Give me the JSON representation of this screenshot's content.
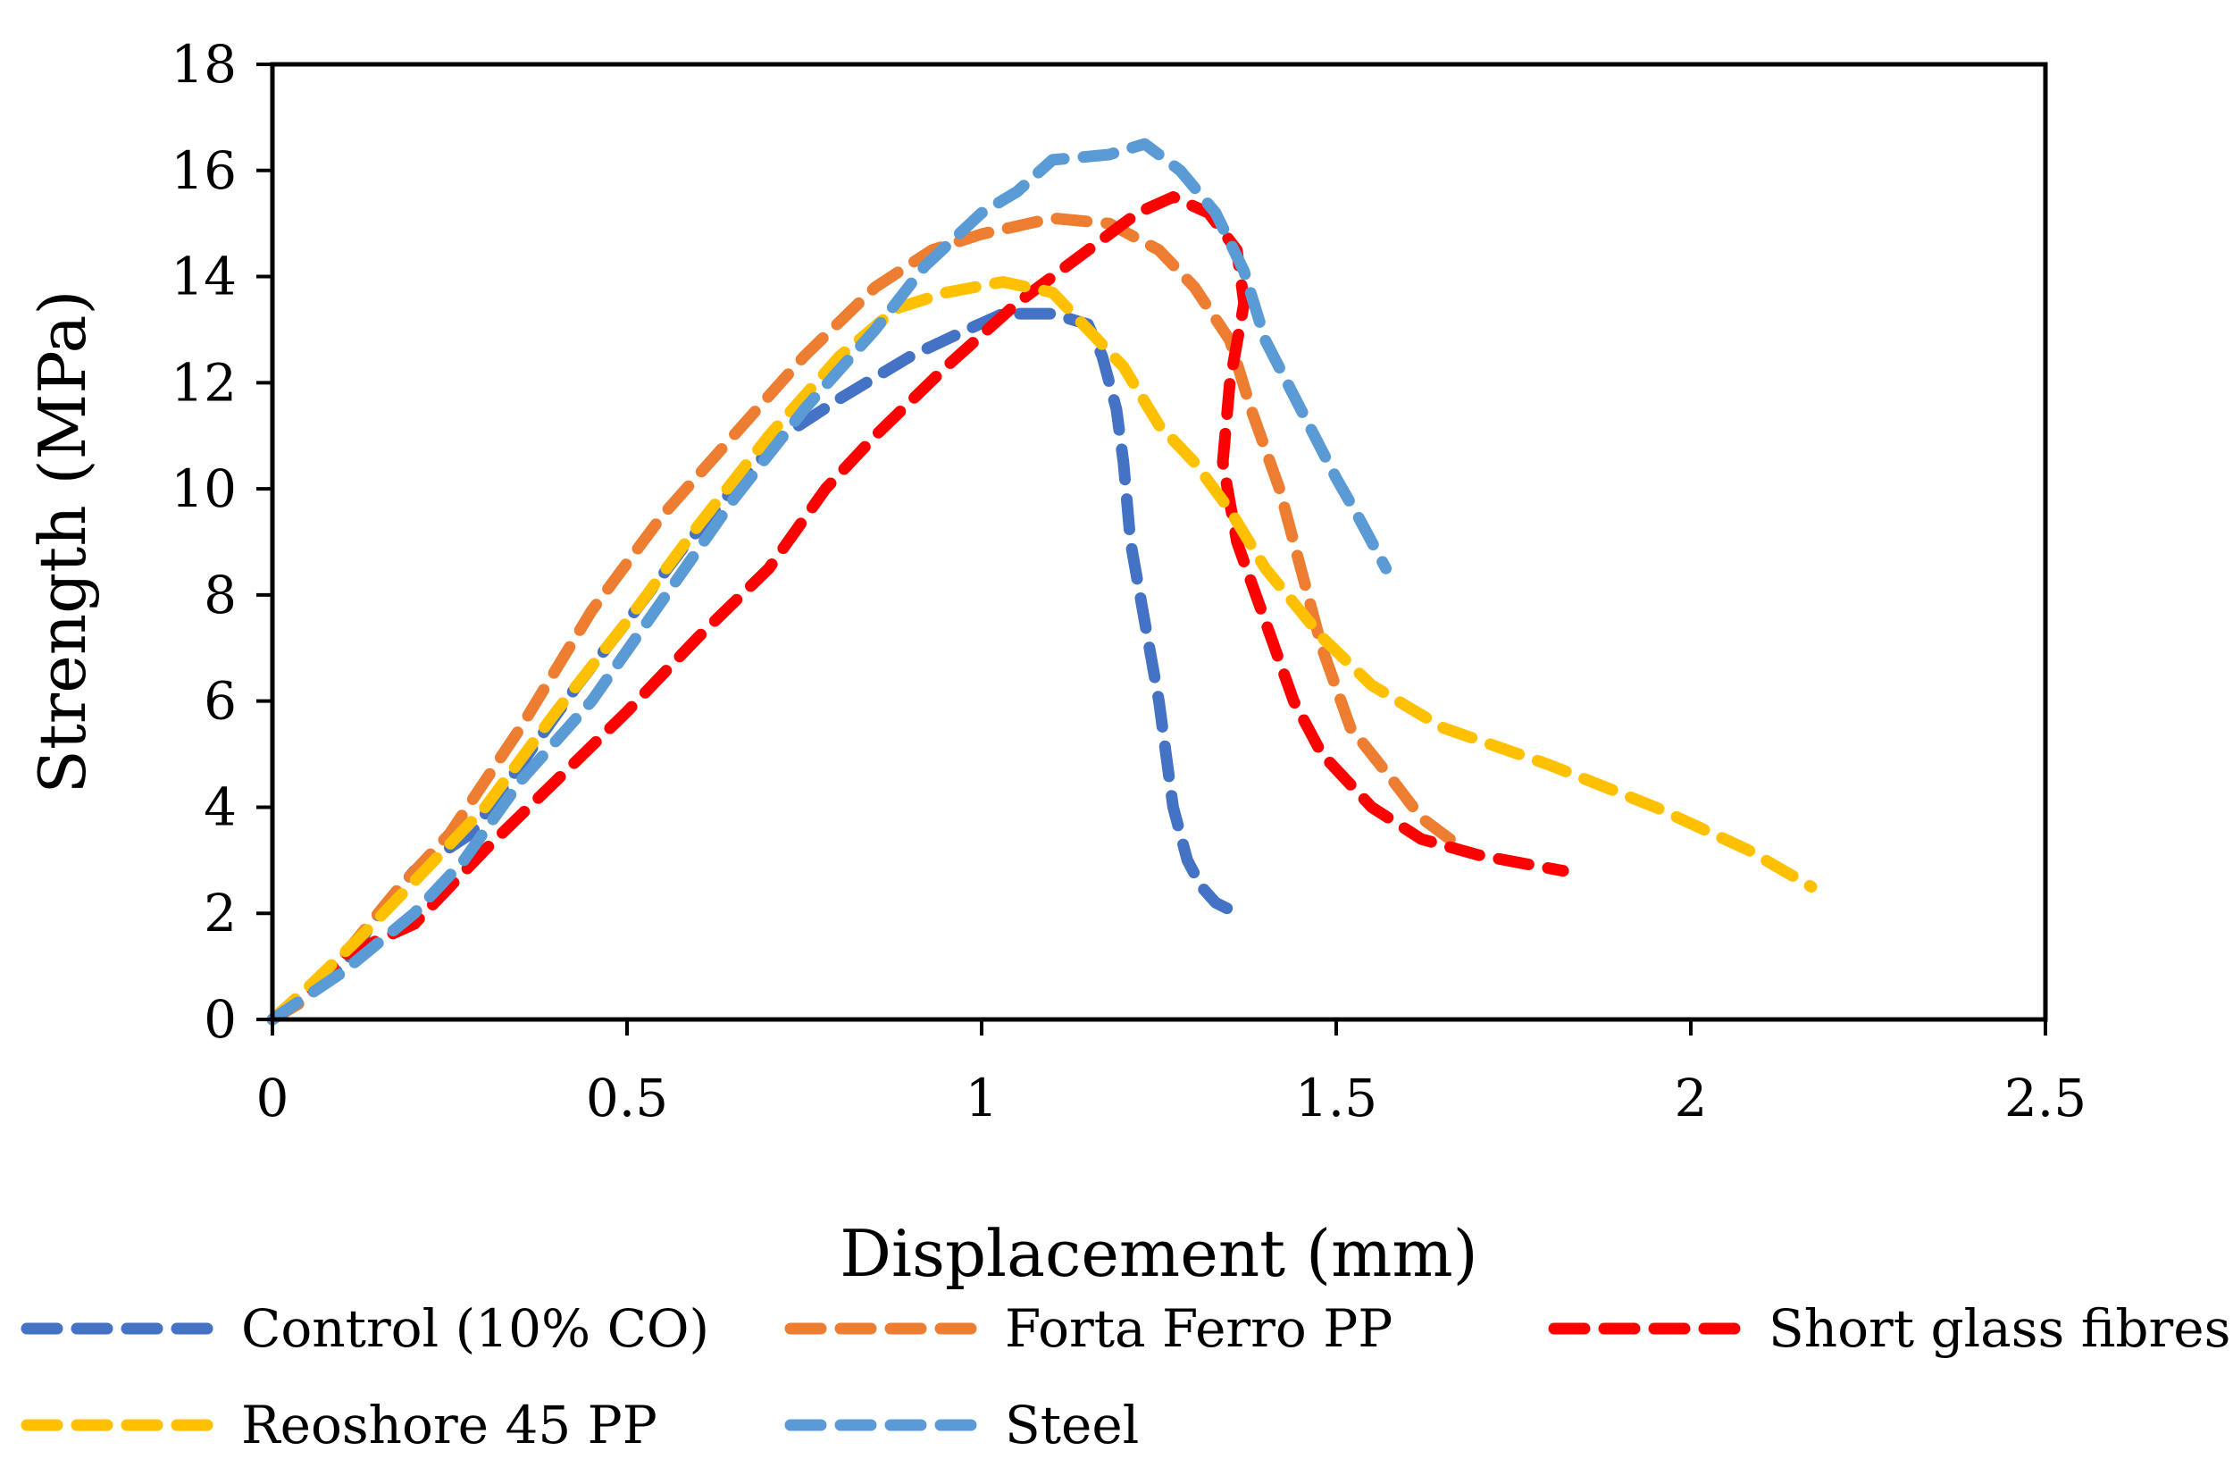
{
  "chart_data": {
    "type": "line",
    "title": "",
    "xlabel": "Displacement (mm)",
    "ylabel": "Strength (MPa)",
    "xlim": [
      0,
      2.5
    ],
    "ylim": [
      0,
      18
    ],
    "xticks": [
      0,
      0.5,
      1,
      1.5,
      2,
      2.5
    ],
    "xtick_labels": [
      "0",
      "0.5",
      "1",
      "1.5",
      "2",
      "2.5"
    ],
    "yticks": [
      0,
      2,
      4,
      6,
      8,
      10,
      12,
      14,
      16,
      18
    ],
    "ytick_labels": [
      "0",
      "2",
      "4",
      "6",
      "8",
      "10",
      "12",
      "14",
      "16",
      "18"
    ],
    "grid": false,
    "legend_position": "bottom",
    "series": [
      {
        "name": "Control (10% CO)",
        "color": "#4472C4",
        "points": [
          [
            0,
            0
          ],
          [
            0.03,
            0.3
          ],
          [
            0.1,
            1.0
          ],
          [
            0.15,
            2.0
          ],
          [
            0.2,
            2.8
          ],
          [
            0.28,
            3.5
          ],
          [
            0.35,
            4.8
          ],
          [
            0.43,
            6.3
          ],
          [
            0.5,
            7.5
          ],
          [
            0.58,
            8.9
          ],
          [
            0.65,
            10.0
          ],
          [
            0.72,
            11.0
          ],
          [
            0.8,
            11.7
          ],
          [
            0.9,
            12.5
          ],
          [
            0.98,
            13.0
          ],
          [
            1.03,
            13.3
          ],
          [
            1.1,
            13.3
          ],
          [
            1.15,
            13.1
          ],
          [
            1.17,
            12.5
          ],
          [
            1.19,
            11.5
          ],
          [
            1.2,
            10.5
          ],
          [
            1.21,
            9.0
          ],
          [
            1.23,
            7.5
          ],
          [
            1.25,
            6.0
          ],
          [
            1.26,
            5.0
          ],
          [
            1.27,
            4.0
          ],
          [
            1.29,
            3.0
          ],
          [
            1.31,
            2.5
          ],
          [
            1.33,
            2.2
          ],
          [
            1.36,
            2.0
          ]
        ]
      },
      {
        "name": "Forta Ferro PP",
        "color": "#ED7D31",
        "points": [
          [
            0,
            0
          ],
          [
            0.05,
            0.4
          ],
          [
            0.1,
            1.2
          ],
          [
            0.18,
            2.5
          ],
          [
            0.25,
            3.5
          ],
          [
            0.35,
            5.5
          ],
          [
            0.45,
            7.7
          ],
          [
            0.55,
            9.5
          ],
          [
            0.65,
            11.0
          ],
          [
            0.75,
            12.5
          ],
          [
            0.85,
            13.8
          ],
          [
            0.93,
            14.5
          ],
          [
            1.0,
            14.8
          ],
          [
            1.1,
            15.1
          ],
          [
            1.18,
            15.0
          ],
          [
            1.25,
            14.5
          ],
          [
            1.3,
            13.8
          ],
          [
            1.35,
            12.8
          ],
          [
            1.38,
            11.5
          ],
          [
            1.42,
            10.0
          ],
          [
            1.45,
            8.5
          ],
          [
            1.48,
            7.0
          ],
          [
            1.52,
            5.5
          ],
          [
            1.58,
            4.5
          ],
          [
            1.62,
            3.8
          ],
          [
            1.67,
            3.3
          ]
        ]
      },
      {
        "name": "Short glass fibres",
        "color": "#FF0000",
        "points": [
          [
            0,
            0
          ],
          [
            0.05,
            0.5
          ],
          [
            0.1,
            1.2
          ],
          [
            0.15,
            1.5
          ],
          [
            0.2,
            1.8
          ],
          [
            0.3,
            3.2
          ],
          [
            0.4,
            4.5
          ],
          [
            0.5,
            5.8
          ],
          [
            0.6,
            7.2
          ],
          [
            0.7,
            8.5
          ],
          [
            0.78,
            10.0
          ],
          [
            0.85,
            11.0
          ],
          [
            0.95,
            12.3
          ],
          [
            1.05,
            13.5
          ],
          [
            1.15,
            14.5
          ],
          [
            1.22,
            15.2
          ],
          [
            1.27,
            15.5
          ],
          [
            1.32,
            15.2
          ],
          [
            1.36,
            14.5
          ],
          [
            1.37,
            13.5
          ],
          [
            1.35,
            12.0
          ],
          [
            1.34,
            10.5
          ],
          [
            1.36,
            9.0
          ],
          [
            1.4,
            7.5
          ],
          [
            1.44,
            6.0
          ],
          [
            1.48,
            5.0
          ],
          [
            1.55,
            4.0
          ],
          [
            1.62,
            3.4
          ],
          [
            1.7,
            3.1
          ],
          [
            1.82,
            2.8
          ]
        ]
      },
      {
        "name": "Reoshore 45 PP",
        "color": "#FFC000",
        "points": [
          [
            0,
            0
          ],
          [
            0.05,
            0.6
          ],
          [
            0.12,
            1.5
          ],
          [
            0.2,
            2.6
          ],
          [
            0.3,
            4.0
          ],
          [
            0.4,
            5.8
          ],
          [
            0.5,
            7.5
          ],
          [
            0.6,
            9.3
          ],
          [
            0.7,
            11.0
          ],
          [
            0.8,
            12.5
          ],
          [
            0.88,
            13.4
          ],
          [
            0.95,
            13.7
          ],
          [
            1.03,
            13.9
          ],
          [
            1.1,
            13.7
          ],
          [
            1.15,
            13.0
          ],
          [
            1.2,
            12.3
          ],
          [
            1.25,
            11.2
          ],
          [
            1.3,
            10.5
          ],
          [
            1.35,
            9.6
          ],
          [
            1.4,
            8.5
          ],
          [
            1.48,
            7.2
          ],
          [
            1.55,
            6.3
          ],
          [
            1.65,
            5.5
          ],
          [
            1.8,
            4.8
          ],
          [
            1.95,
            4.0
          ],
          [
            2.08,
            3.2
          ],
          [
            2.17,
            2.5
          ]
        ]
      },
      {
        "name": "Steel",
        "color": "#5B9BD5",
        "points": [
          [
            0,
            0
          ],
          [
            0.1,
            0.9
          ],
          [
            0.2,
            2.0
          ],
          [
            0.27,
            3.0
          ],
          [
            0.35,
            4.5
          ],
          [
            0.45,
            6.0
          ],
          [
            0.55,
            7.9
          ],
          [
            0.65,
            9.8
          ],
          [
            0.75,
            11.5
          ],
          [
            0.85,
            13.0
          ],
          [
            0.92,
            14.2
          ],
          [
            1.0,
            15.2
          ],
          [
            1.05,
            15.6
          ],
          [
            1.1,
            16.2
          ],
          [
            1.18,
            16.3
          ],
          [
            1.23,
            16.5
          ],
          [
            1.28,
            16.0
          ],
          [
            1.33,
            15.2
          ],
          [
            1.37,
            14.1
          ],
          [
            1.4,
            12.8
          ],
          [
            1.45,
            11.5
          ],
          [
            1.5,
            10.2
          ],
          [
            1.53,
            9.5
          ],
          [
            1.57,
            8.5
          ]
        ]
      }
    ]
  }
}
